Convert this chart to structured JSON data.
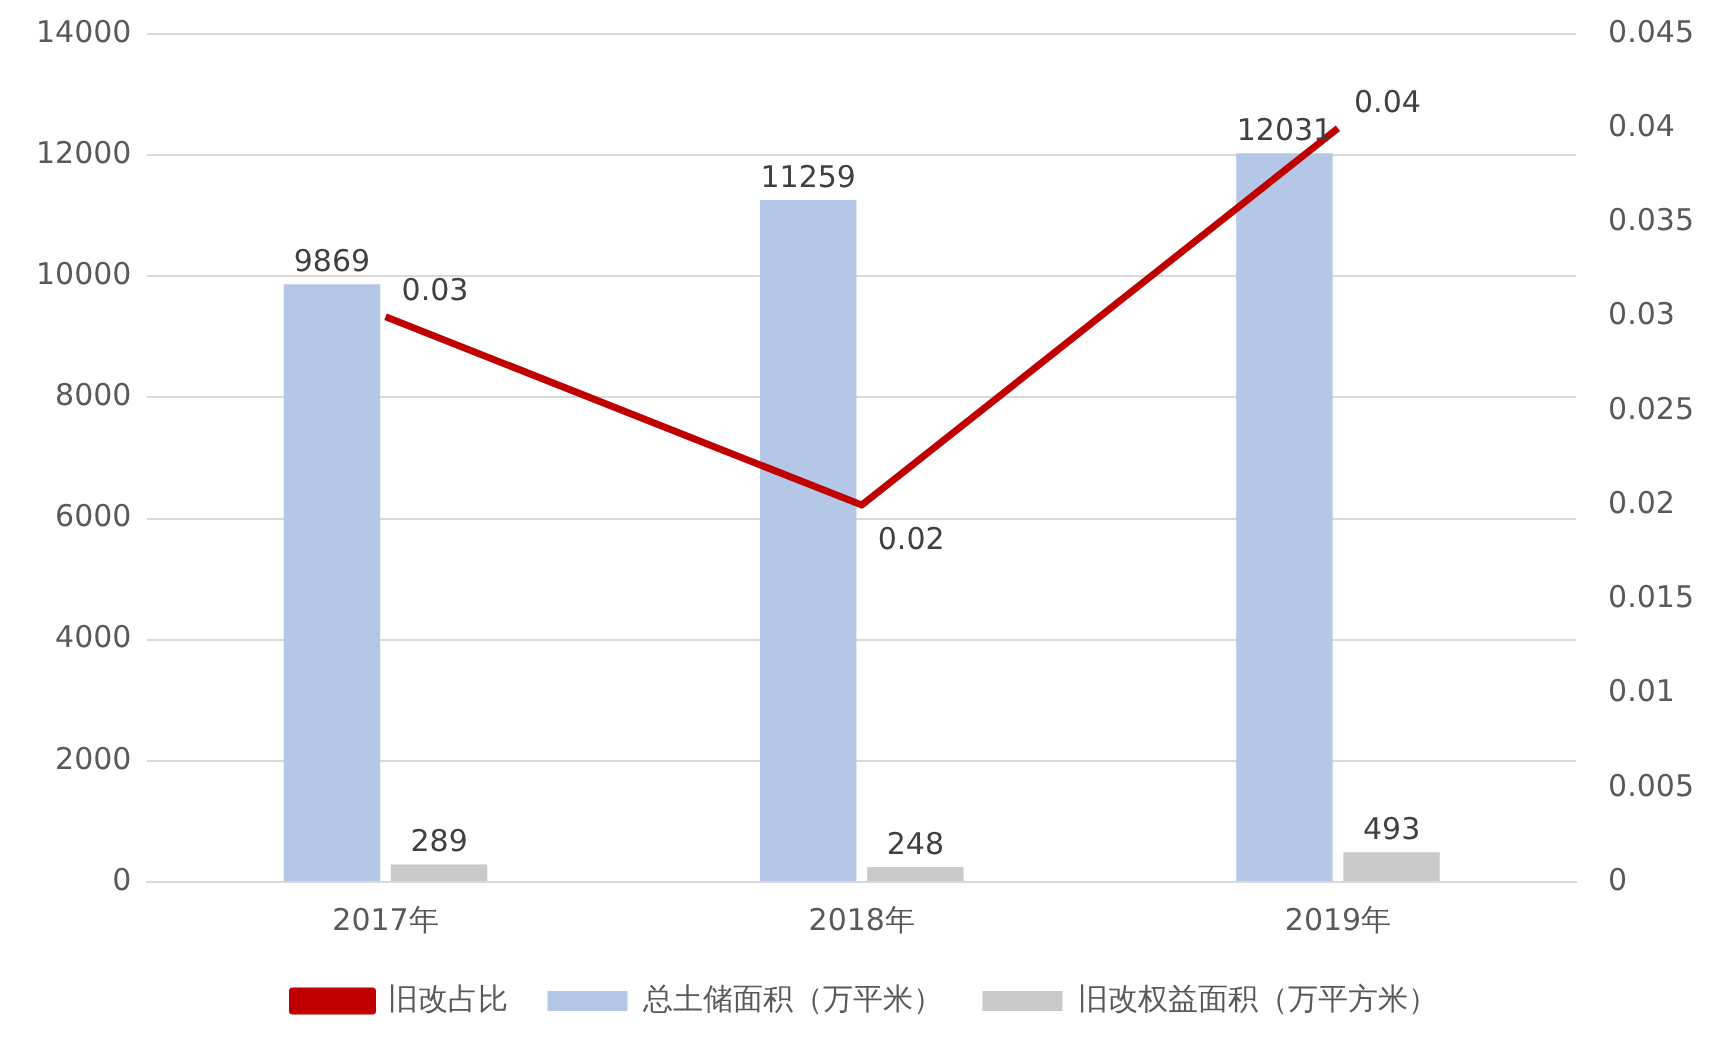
{
  "chart_data": {
    "type": "bar",
    "categories": [
      "2017年",
      "2018年",
      "2019年"
    ],
    "series": [
      {
        "name": "总土储面积（万平米）",
        "color": "#b4c7e7",
        "values": [
          9869,
          11259,
          12031
        ]
      },
      {
        "name": "旧改权益面积（万平方米）",
        "color": "#c9c9c9",
        "values": [
          289,
          248,
          493
        ]
      },
      {
        "name": "旧改占比",
        "type": "line",
        "axis": "y2",
        "color": "#c00000",
        "values": [
          0.03,
          0.02,
          0.04
        ]
      }
    ],
    "ylim": [
      0,
      14000
    ],
    "yticks": [
      0,
      2000,
      4000,
      6000,
      8000,
      10000,
      12000,
      14000
    ],
    "y2lim": [
      0,
      0.045
    ],
    "y2ticks": [
      0,
      0.005,
      0.01,
      0.015,
      0.02,
      0.025,
      0.03,
      0.035,
      0.04,
      0.045
    ],
    "grid": "y",
    "legend": "bottom",
    "data_labels": true,
    "marker": "none",
    "line_style": "solid"
  }
}
